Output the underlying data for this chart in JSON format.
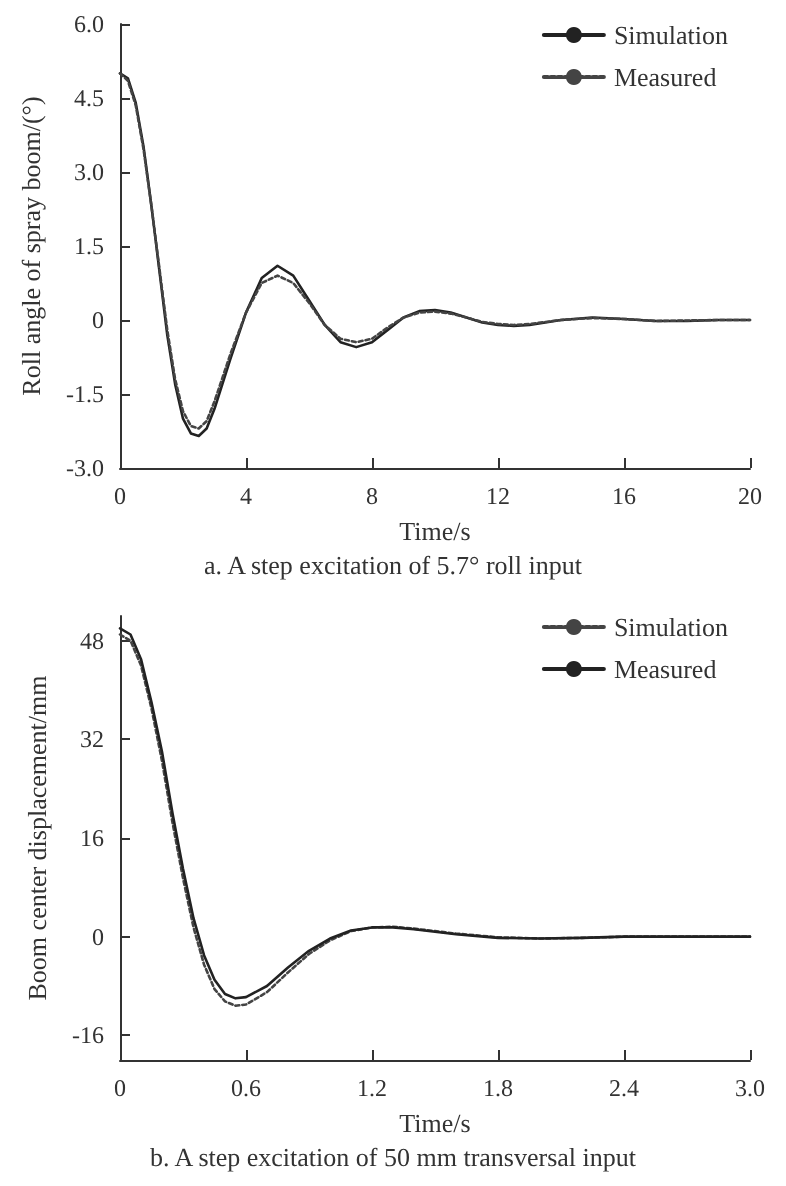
{
  "chart_data": [
    {
      "type": "line",
      "title": "a. A step excitation of 5.7° roll input",
      "xlabel": "Time/s",
      "ylabel": "Roll angle of spray boom/(°)",
      "xlim": [
        0,
        20
      ],
      "xticks": [
        0,
        4,
        8,
        12,
        16,
        20
      ],
      "ylim": [
        -3,
        6
      ],
      "yticks": [
        {
          "value": -3,
          "label": "-3.0"
        },
        -1.5,
        0,
        1.5,
        {
          "value": 3,
          "label": "3.0"
        },
        4.5,
        {
          "value": 6,
          "label": "6.0"
        }
      ],
      "grid": false,
      "legend": "top right",
      "marker": "none",
      "x": [
        0,
        0.25,
        0.5,
        0.75,
        1,
        1.25,
        1.5,
        1.75,
        2,
        2.25,
        2.5,
        2.75,
        3,
        3.5,
        4,
        4.5,
        5,
        5.5,
        6,
        6.5,
        7,
        7.5,
        8,
        8.5,
        9,
        9.5,
        10,
        10.5,
        11,
        11.5,
        12,
        12.5,
        13,
        14,
        15,
        16,
        17,
        18,
        19,
        20
      ],
      "series": [
        {
          "name": "Simulation",
          "color": "#222222",
          "line_style": "solid",
          "values": [
            5.0,
            4.9,
            4.4,
            3.5,
            2.3,
            1.0,
            -0.3,
            -1.3,
            -2.0,
            -2.3,
            -2.35,
            -2.2,
            -1.8,
            -0.8,
            0.15,
            0.85,
            1.1,
            0.9,
            0.4,
            -0.1,
            -0.45,
            -0.55,
            -0.45,
            -0.2,
            0.05,
            0.18,
            0.2,
            0.15,
            0.05,
            -0.05,
            -0.1,
            -0.12,
            -0.1,
            0,
            0.05,
            0.02,
            -0.02,
            -0.02,
            0,
            0
          ]
        },
        {
          "name": "Measured",
          "color": "#444444",
          "line_style": "dotted",
          "values": [
            5.0,
            4.85,
            4.35,
            3.45,
            2.3,
            1.05,
            -0.2,
            -1.2,
            -1.85,
            -2.15,
            -2.2,
            -2.05,
            -1.65,
            -0.7,
            0.15,
            0.75,
            0.9,
            0.75,
            0.35,
            -0.1,
            -0.38,
            -0.45,
            -0.38,
            -0.15,
            0.05,
            0.15,
            0.17,
            0.13,
            0.05,
            -0.04,
            -0.08,
            -0.1,
            -0.08,
            0,
            0.04,
            0.02,
            -0.02,
            -0.01,
            0,
            0
          ]
        }
      ]
    },
    {
      "type": "line",
      "title": "b. A step excitation of 50 mm transversal input",
      "xlabel": "Time/s",
      "ylabel": "Boom center displacement/mm",
      "xlim": [
        0,
        3
      ],
      "xticks": [
        0,
        0.6,
        1.2,
        1.8,
        2.4,
        {
          "value": 3,
          "label": "3.0"
        }
      ],
      "ylim": [
        -20,
        52
      ],
      "yticks": [
        -16,
        0,
        16,
        32,
        48
      ],
      "grid": false,
      "legend": "top right",
      "marker": "none",
      "x": [
        0,
        0.05,
        0.1,
        0.15,
        0.2,
        0.25,
        0.3,
        0.35,
        0.4,
        0.45,
        0.5,
        0.55,
        0.6,
        0.7,
        0.8,
        0.9,
        1.0,
        1.1,
        1.2,
        1.3,
        1.4,
        1.5,
        1.6,
        1.8,
        2.0,
        2.2,
        2.4,
        2.7,
        3.0
      ],
      "series": [
        {
          "name": "Simulation",
          "color": "#444444",
          "line_style": "dotted",
          "values": [
            49,
            48,
            44,
            37,
            28.5,
            18.5,
            9.5,
            1.5,
            -4.5,
            -8.5,
            -10.5,
            -11.2,
            -11,
            -9,
            -5.8,
            -2.8,
            -0.6,
            0.9,
            1.5,
            1.6,
            1.3,
            0.9,
            0.5,
            -0.1,
            -0.3,
            -0.2,
            0,
            0,
            0
          ]
        },
        {
          "name": "Measured",
          "color": "#222222",
          "line_style": "solid",
          "values": [
            50,
            49,
            45,
            38,
            30,
            20,
            11,
            3,
            -3,
            -7,
            -9.3,
            -10,
            -9.8,
            -8,
            -5,
            -2.3,
            -0.3,
            1,
            1.5,
            1.5,
            1.2,
            0.8,
            0.4,
            -0.2,
            -0.3,
            -0.2,
            0,
            0,
            0
          ]
        }
      ]
    }
  ]
}
